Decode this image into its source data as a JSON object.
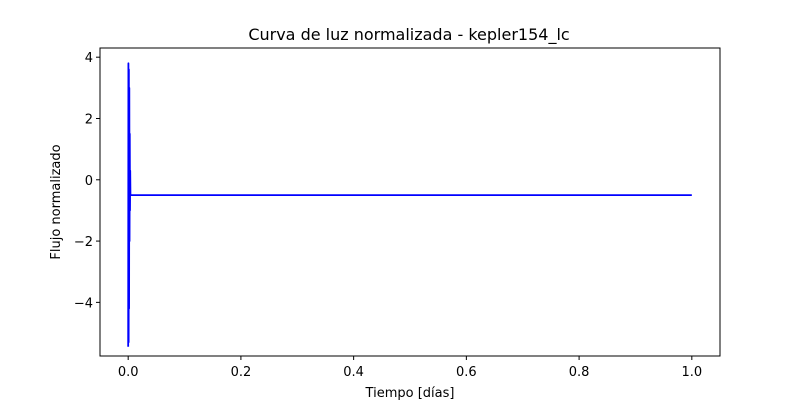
{
  "chart_data": {
    "type": "line",
    "title": "Curva de luz normalizada - kepler154_lc",
    "xlabel": "Tiempo [días]",
    "ylabel": "Flujo normalizado",
    "xlim": [
      -0.05,
      1.05
    ],
    "ylim": [
      -5.75,
      4.3
    ],
    "xticks": [
      0.0,
      0.2,
      0.4,
      0.6,
      0.8,
      1.0
    ],
    "xtick_labels": [
      "0.0",
      "0.2",
      "0.4",
      "0.6",
      "0.8",
      "1.0"
    ],
    "yticks": [
      -4,
      -2,
      0,
      2,
      4
    ],
    "ytick_labels": [
      "−4",
      "−2",
      "0",
      "2",
      "4"
    ],
    "grid": false,
    "line_color": "#0000ff",
    "series": [
      {
        "x": [
          0.0,
          0.0004,
          0.0008,
          0.0012,
          0.0016,
          0.002,
          0.0024,
          0.0028,
          0.0032,
          0.0036,
          0.004,
          0.006,
          1.0
        ],
        "y": [
          -5.45,
          3.8,
          -5.3,
          3.6,
          -4.2,
          3.0,
          -2.0,
          1.5,
          -1.0,
          0.3,
          -0.5,
          -0.5,
          -0.5
        ]
      }
    ]
  }
}
